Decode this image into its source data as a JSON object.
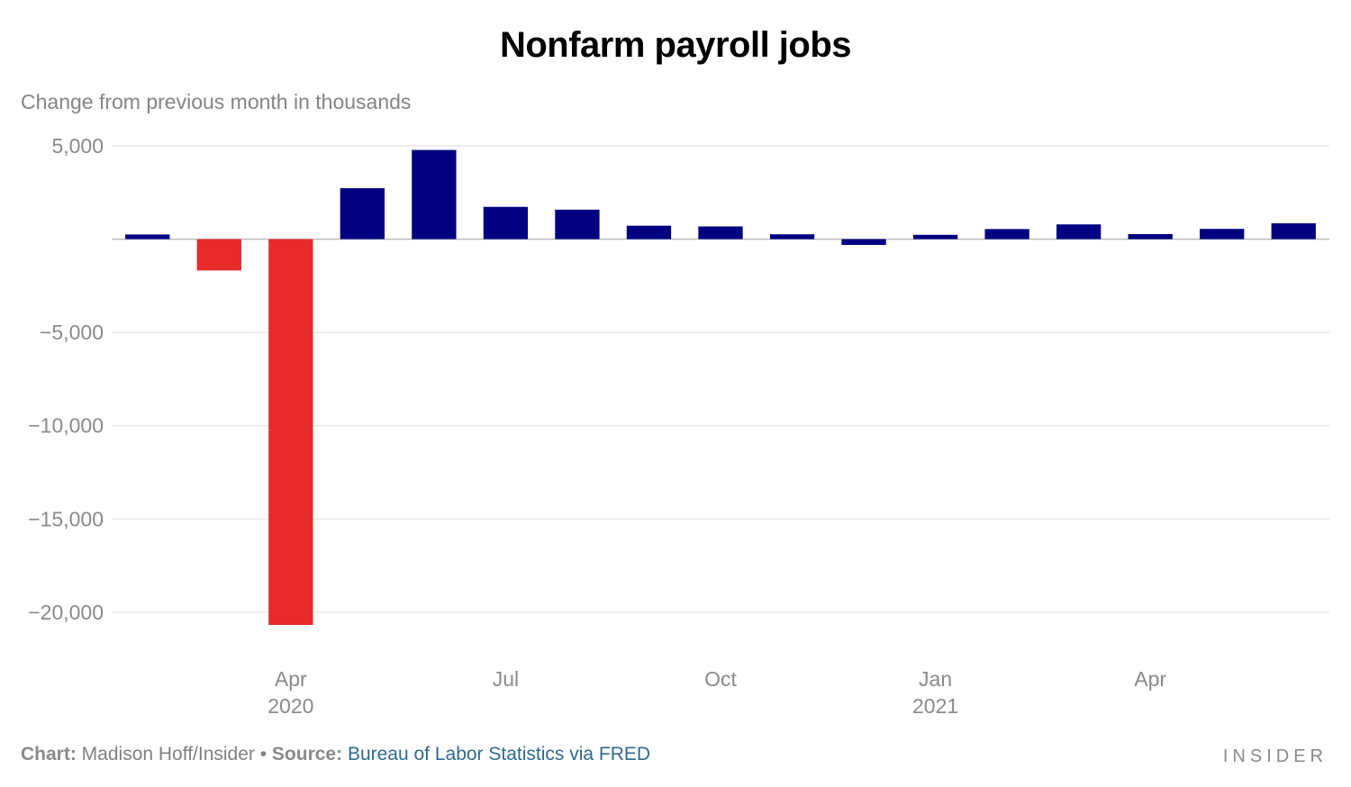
{
  "chart_data": {
    "type": "bar",
    "title": "Nonfarm payroll jobs",
    "subtitle": "Change from previous month in thousands",
    "xlabel": "",
    "ylabel": "",
    "categories": [
      "Feb 2020",
      "Mar 2020",
      "Apr 2020",
      "May 2020",
      "Jun 2020",
      "Jul 2020",
      "Aug 2020",
      "Sep 2020",
      "Oct 2020",
      "Nov 2020",
      "Dec 2020",
      "Jan 2021",
      "Feb 2021",
      "Mar 2021",
      "Apr 2021",
      "May 2021",
      "Jun 2021"
    ],
    "values": [
      250,
      -1680,
      -20680,
      2730,
      4780,
      1730,
      1580,
      720,
      680,
      260,
      -310,
      230,
      540,
      790,
      270,
      550,
      850
    ],
    "ylim": [
      -20680,
      5000
    ],
    "yticks": [
      5000,
      0,
      -5000,
      -10000,
      -15000,
      -20000
    ],
    "ytick_labels": [
      "5,000",
      "",
      "−5,000",
      "−10,000",
      "−15,000",
      "−20,000"
    ],
    "xtick_labels": [
      {
        "index": 2,
        "label": "Apr",
        "sublabel": "2020"
      },
      {
        "index": 5,
        "label": "Jul",
        "sublabel": ""
      },
      {
        "index": 8,
        "label": "Oct",
        "sublabel": ""
      },
      {
        "index": 11,
        "label": "Jan",
        "sublabel": "2021"
      },
      {
        "index": 14,
        "label": "Apr",
        "sublabel": ""
      }
    ],
    "grid": true,
    "colors": {
      "positive": "#000080",
      "negative": "#e52b2b",
      "grid": "#e3e3e3",
      "zero_line": "#bdbdbd"
    }
  },
  "footer": {
    "chart_label": "Chart:",
    "chart_author": " Madison Hoff/Insider",
    "separator": " • ",
    "source_label": "Source:",
    "source_text": " Bureau of Labor Statistics via FRED"
  },
  "brand": "INSIDER"
}
